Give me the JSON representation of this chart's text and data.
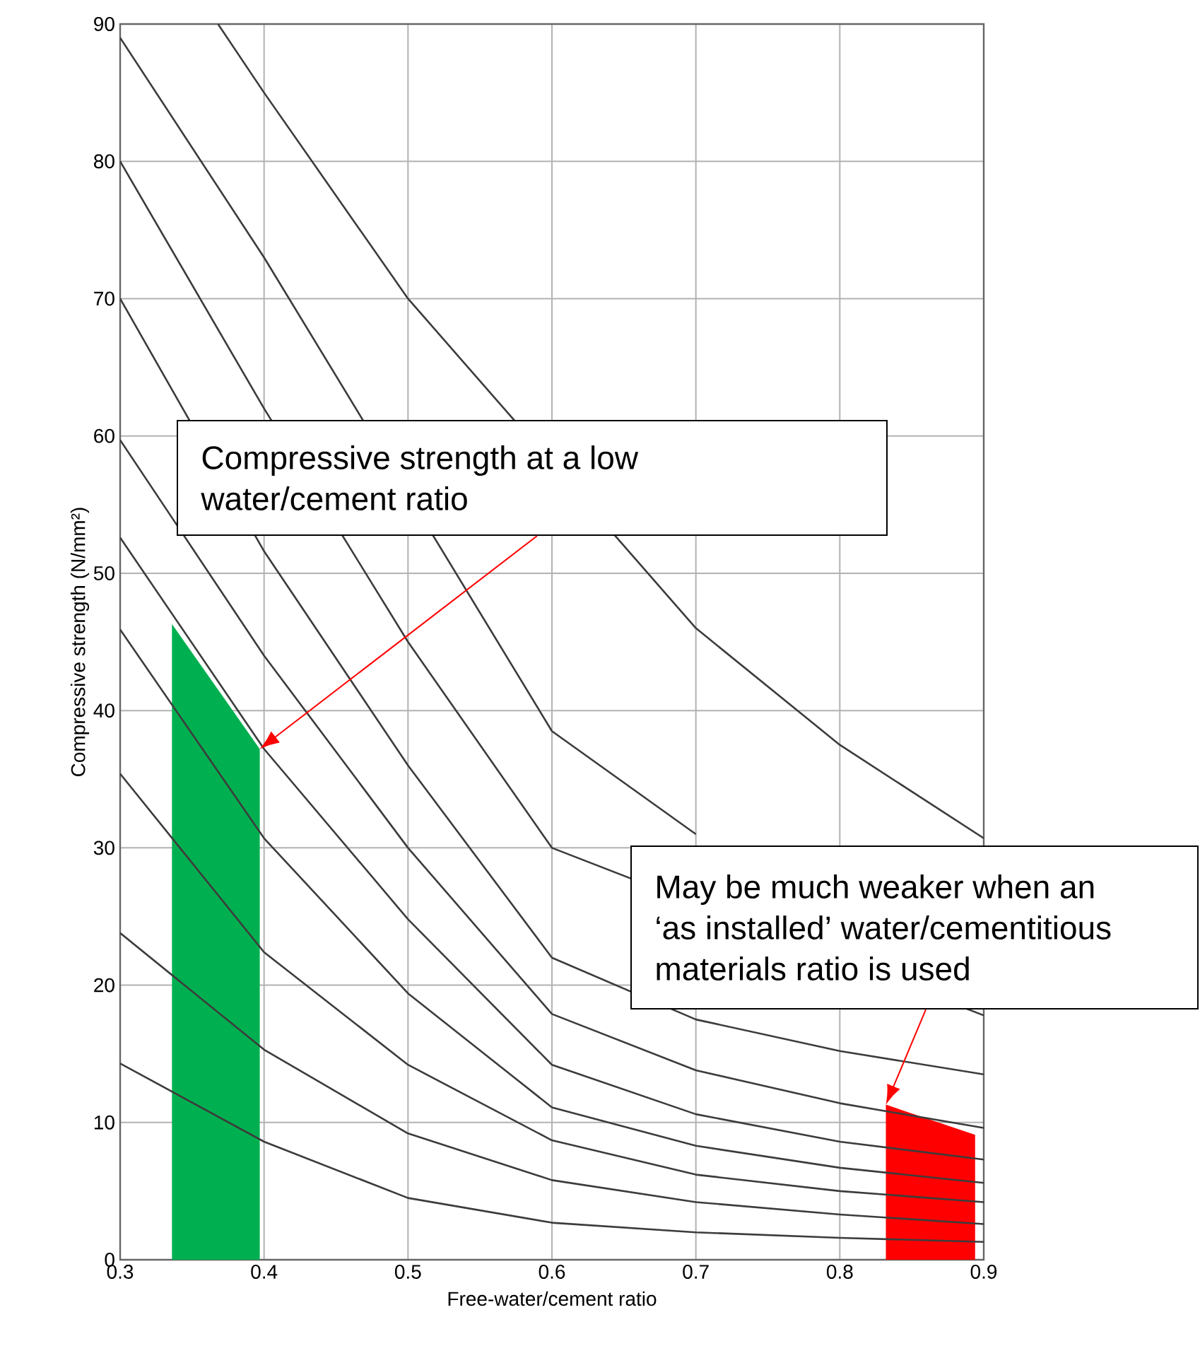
{
  "chart_data": {
    "type": "line",
    "xlabel": "Free-water/cement ratio",
    "ylabel": "Compressive strength (N/mm²)",
    "xlim": [
      0.3,
      0.9
    ],
    "ylim": [
      0,
      90
    ],
    "xticks": [
      0.3,
      0.4,
      0.5,
      0.6,
      0.7,
      0.8,
      0.9
    ],
    "yticks": [
      0,
      10,
      20,
      30,
      40,
      50,
      60,
      70,
      80,
      90
    ],
    "grid": true,
    "series": [
      {
        "type": "area",
        "color": "#00b050",
        "x": [
          0.336,
          0.397
        ],
        "values": [
          46.3,
          37.2
        ]
      },
      {
        "type": "area",
        "color": "#ff0000",
        "x": [
          0.832,
          0.894
        ],
        "values": [
          11.3,
          9.1
        ]
      },
      {
        "color": "#3c3c3c",
        "x": [
          0.368,
          0.4,
          0.5,
          0.7,
          0.8,
          0.9
        ],
        "values": [
          90,
          85,
          70,
          46,
          37.5,
          30.7
        ]
      },
      {
        "color": "#3c3c3c",
        "x": [
          0.3,
          0.4,
          0.6,
          0.7
        ],
        "values": [
          89,
          73,
          38.5,
          31
        ]
      },
      {
        "color": "#3c3c3c",
        "x": [
          0.3,
          0.4,
          0.5,
          0.6,
          0.9
        ],
        "values": [
          80,
          62,
          45,
          30,
          17.8
        ]
      },
      {
        "color": "#3c3c3c",
        "x": [
          0.3,
          0.4,
          0.5,
          0.6,
          0.7,
          0.8,
          0.9
        ],
        "values": [
          70,
          51.6,
          36,
          22,
          17.5,
          15.2,
          13.5
        ]
      },
      {
        "color": "#3c3c3c",
        "x": [
          0.3,
          0.4,
          0.5,
          0.6,
          0.7,
          0.8,
          0.9
        ],
        "values": [
          59.7,
          44,
          30,
          17.9,
          13.8,
          11.4,
          9.6
        ]
      },
      {
        "color": "#3c3c3c",
        "x": [
          0.3,
          0.4,
          0.5,
          0.6,
          0.7,
          0.8,
          0.9
        ],
        "values": [
          52.6,
          37.2,
          24.8,
          14.2,
          10.6,
          8.6,
          7.3
        ]
      },
      {
        "color": "#3c3c3c",
        "x": [
          0.3,
          0.4,
          0.5,
          0.6,
          0.7,
          0.8,
          0.9
        ],
        "values": [
          45.9,
          30.7,
          19.4,
          11.1,
          8.3,
          6.7,
          5.6
        ]
      },
      {
        "color": "#3c3c3c",
        "x": [
          0.3,
          0.4,
          0.5,
          0.6,
          0.7,
          0.8,
          0.9
        ],
        "values": [
          35.4,
          22.4,
          14.2,
          8.7,
          6.2,
          5.0,
          4.2
        ]
      },
      {
        "color": "#3c3c3c",
        "x": [
          0.3,
          0.4,
          0.5,
          0.6,
          0.7,
          0.8,
          0.9
        ],
        "values": [
          23.8,
          15.3,
          9.2,
          5.8,
          4.2,
          3.3,
          2.6
        ]
      },
      {
        "color": "#3c3c3c",
        "x": [
          0.3,
          0.4,
          0.5,
          0.6,
          0.7,
          0.8,
          0.9
        ],
        "values": [
          14.3,
          8.6,
          4.5,
          2.7,
          2.0,
          1.6,
          1.3
        ]
      }
    ],
    "annotations": [
      "Compressive strength at a low water/cement ratio",
      "May be much weaker when an ‘as installed’  water/cementitious materials ratio is used"
    ]
  }
}
